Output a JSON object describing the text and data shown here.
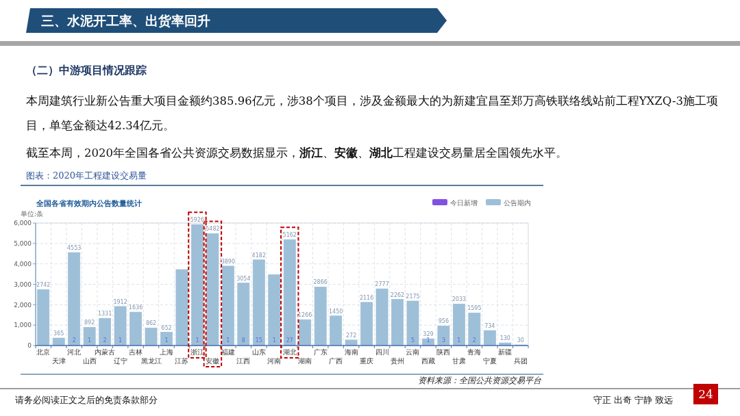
{
  "chart_data": {
    "type": "bar",
    "title": "全国各省有效期内公告数量统计",
    "ylabel": "单位:条",
    "categories": [
      "北京",
      "天津",
      "河北",
      "山西",
      "内蒙古",
      "辽宁",
      "吉林",
      "黑龙江",
      "上海",
      "江苏",
      "浙江",
      "安徽",
      "福建",
      "江西",
      "山东",
      "河南",
      "湖北",
      "湖南",
      "广东",
      "广西",
      "海南",
      "重庆",
      "四川",
      "贵州",
      "云南",
      "西藏",
      "陕西",
      "甘肃",
      "青海",
      "宁夏",
      "新疆",
      "兵团"
    ],
    "stacked": true,
    "series": [
      {
        "name": "今日新增",
        "color": "#8350e4",
        "values": [
          null,
          null,
          2,
          1,
          2,
          1,
          null,
          null,
          1,
          null,
          1,
          null,
          1,
          8,
          15,
          1,
          27,
          null,
          null,
          null,
          null,
          null,
          null,
          null,
          5,
          1,
          3,
          1,
          2,
          null,
          null,
          null
        ],
        "value_labels": [
          null,
          null,
          "2",
          "1",
          "2",
          "1",
          null,
          null,
          "1",
          null,
          "1",
          null,
          "1",
          "8",
          "15",
          "1",
          "27",
          null,
          null,
          null,
          null,
          null,
          null,
          null,
          "5",
          "1",
          "3",
          "1",
          "2",
          null,
          null,
          null
        ]
      },
      {
        "name": "公告期内",
        "color": "#9ebfd8",
        "values": [
          2742,
          365,
          4553,
          892,
          1331,
          1912,
          1636,
          862,
          652,
          3720,
          5926,
          5482,
          3890,
          3054,
          4182,
          3470,
          5162,
          1266,
          2866,
          1450,
          272,
          2116,
          2777,
          2262,
          2175,
          329,
          956,
          2033,
          1595,
          734,
          130,
          30
        ],
        "value_labels": [
          "2742",
          "365",
          "4553",
          "892",
          "1331",
          "1912",
          "1636",
          "862",
          "652",
          null,
          "5926",
          "5482",
          "3890",
          "3054",
          "4182",
          null,
          "5162",
          "1266",
          "2866",
          "1450",
          "272",
          "2116",
          "2777",
          "2262",
          "2175",
          "329",
          "956",
          "2033",
          "1595",
          "734",
          "130",
          "30"
        ]
      }
    ],
    "ylim": [
      0,
      6000
    ],
    "yticks": [
      0,
      {
        "value": 1000,
        "label": "1,000"
      },
      {
        "value": 2000,
        "label": "2,000"
      },
      {
        "value": 3000,
        "label": "3,000"
      },
      {
        "value": 4000,
        "label": "4,000"
      },
      {
        "value": 5000,
        "label": "5,000"
      },
      {
        "value": 6000,
        "label": "6,000"
      }
    ],
    "grid": true,
    "legend": "top right",
    "annotations": [
      "三、水泥开工率、出货率回升",
      "（二）中游项目情况跟踪",
      "本周建筑行业新公告重大项目金额约385.96亿元，涉38个项目，涉及金额最大的为新建宜昌至郑万高铁联络线站前工程YXZQ-3施工项目，单笔金额达42.34亿元。",
      "截至本周，2020年全国各省公共资源交易数据显示，**浙江**、**安徽**、**湖北**工程建设交易量居全国领先水平。",
      "图表：2020年工程建设交易量",
      "资料来源：全国公共资源交易平台",
      "请务必阅读正文之后的免责条款部分",
      "守正 出奇 宁静 致远",
      "24"
    ]
  }
}
